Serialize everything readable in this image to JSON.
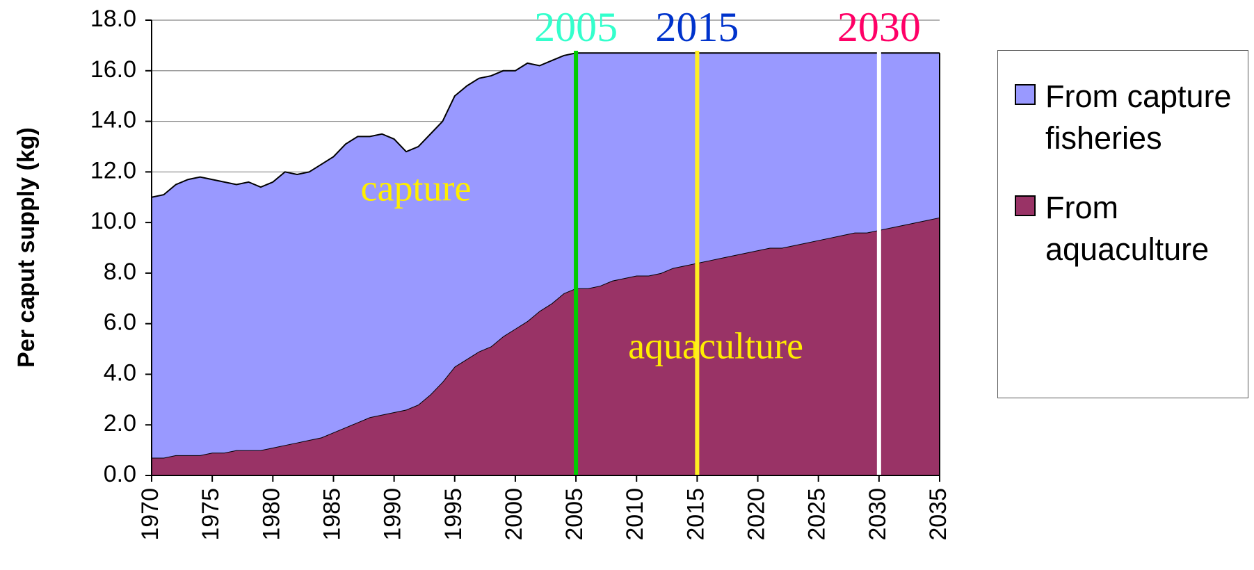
{
  "chart_data": {
    "type": "stacked_area",
    "y_label": "Per caput supply (kg)",
    "x": [
      1970,
      1971,
      1972,
      1973,
      1974,
      1975,
      1976,
      1977,
      1978,
      1979,
      1980,
      1981,
      1982,
      1983,
      1984,
      1985,
      1986,
      1987,
      1988,
      1989,
      1990,
      1991,
      1992,
      1993,
      1994,
      1995,
      1996,
      1997,
      1998,
      1999,
      2000,
      2001,
      2002,
      2003,
      2004,
      2005,
      2006,
      2007,
      2008,
      2009,
      2010,
      2011,
      2012,
      2013,
      2014,
      2015,
      2016,
      2017,
      2018,
      2019,
      2020,
      2021,
      2022,
      2023,
      2024,
      2025,
      2026,
      2027,
      2028,
      2029,
      2030,
      2031,
      2032,
      2033,
      2034,
      2035
    ],
    "series": [
      {
        "name": "From aquaculture",
        "label": "aquaculture",
        "color": "#993366",
        "values": [
          0.7,
          0.7,
          0.8,
          0.8,
          0.8,
          0.9,
          0.9,
          1.0,
          1.0,
          1.0,
          1.1,
          1.2,
          1.3,
          1.4,
          1.5,
          1.7,
          1.9,
          2.1,
          2.3,
          2.4,
          2.5,
          2.6,
          2.8,
          3.2,
          3.7,
          4.3,
          4.6,
          4.9,
          5.1,
          5.5,
          5.8,
          6.1,
          6.5,
          6.8,
          7.2,
          7.4,
          7.4,
          7.5,
          7.7,
          7.8,
          7.9,
          7.9,
          8.0,
          8.2,
          8.3,
          8.4,
          8.5,
          8.6,
          8.7,
          8.8,
          8.9,
          9.0,
          9.0,
          9.1,
          9.2,
          9.3,
          9.4,
          9.5,
          9.6,
          9.6,
          9.7,
          9.8,
          9.9,
          10.0,
          10.1,
          10.2
        ]
      },
      {
        "name": "From capture fisheries",
        "label": "capture",
        "color": "#9999ff",
        "values": [
          10.3,
          10.4,
          10.7,
          10.9,
          11.0,
          10.8,
          10.7,
          10.5,
          10.6,
          10.4,
          10.5,
          10.8,
          10.6,
          10.6,
          10.8,
          10.9,
          11.2,
          11.3,
          11.1,
          11.1,
          10.8,
          10.2,
          10.2,
          10.3,
          10.3,
          10.7,
          10.8,
          10.8,
          10.7,
          10.5,
          10.2,
          10.2,
          9.7,
          9.6,
          9.4,
          9.3,
          9.3,
          9.2,
          9.0,
          8.9,
          8.8,
          8.8,
          8.7,
          8.5,
          8.4,
          8.3,
          8.2,
          8.1,
          8.0,
          7.9,
          7.8,
          7.7,
          7.7,
          7.6,
          7.5,
          7.4,
          7.3,
          7.2,
          7.1,
          7.1,
          7.0,
          6.9,
          6.8,
          6.7,
          6.6,
          6.5
        ]
      }
    ],
    "xlim": [
      1970,
      2035
    ],
    "xticks": [
      1970,
      1975,
      1980,
      1985,
      1990,
      1995,
      2000,
      2005,
      2010,
      2015,
      2020,
      2025,
      2030,
      2035
    ],
    "ylim": [
      0,
      18
    ],
    "yticks": [
      {
        "value": 0,
        "label": "0.0"
      },
      {
        "value": 2,
        "label": "2.0"
      },
      {
        "value": 4,
        "label": "4.0"
      },
      {
        "value": 6,
        "label": "6.0"
      },
      {
        "value": 8,
        "label": "8.0"
      },
      {
        "value": 10,
        "label": "10.0"
      },
      {
        "value": 12,
        "label": "12.0"
      },
      {
        "value": 14,
        "label": "14.0"
      },
      {
        "value": 16,
        "label": "16.0"
      },
      {
        "value": 18,
        "label": "18.0"
      }
    ],
    "grid": true,
    "legend": "right",
    "markers": [
      {
        "x": 2005,
        "label": "2005",
        "color": "#00cc00",
        "label_color": "#33ffcc"
      },
      {
        "x": 2015,
        "label": "2015",
        "color": "#ffee22",
        "label_color": "#0033cc"
      },
      {
        "x": 2030,
        "label": "2030",
        "color": "#ffffff",
        "label_color": "#ff0066"
      }
    ],
    "label_color": "#ffee00"
  }
}
